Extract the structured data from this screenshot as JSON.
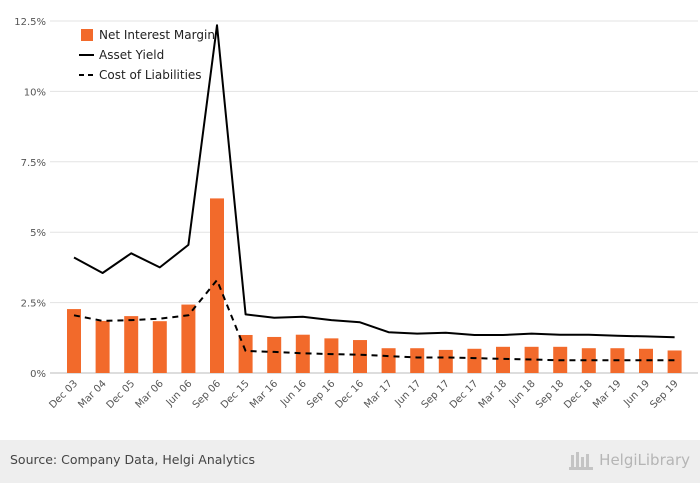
{
  "chart_data": {
    "type": "bar",
    "categories": [
      "Dec 03",
      "Mar 04",
      "Dec 05",
      "Mar 06",
      "Jun 06",
      "Sep 06",
      "Dec 15",
      "Mar 16",
      "Jun 16",
      "Sep 16",
      "Dec 16",
      "Mar 17",
      "Jun 17",
      "Sep 17",
      "Dec 17",
      "Mar 18",
      "Jun 18",
      "Sep 18",
      "Dec 18",
      "Mar 19",
      "Jun 19",
      "Sep 19"
    ],
    "series": [
      {
        "name": "Net Interest Margin",
        "kind": "bar",
        "color": "#f26a2b",
        "values": [
          2.27,
          1.85,
          2.02,
          1.84,
          2.43,
          6.2,
          1.35,
          1.28,
          1.36,
          1.23,
          1.17,
          0.88,
          0.88,
          0.82,
          0.86,
          0.93,
          0.93,
          0.93,
          0.88,
          0.88,
          0.86,
          0.8
        ]
      },
      {
        "name": "Asset Yield",
        "kind": "line",
        "style": "solid",
        "color": "#000000",
        "values": [
          4.1,
          3.55,
          4.25,
          3.75,
          4.55,
          12.35,
          2.08,
          1.96,
          2.0,
          1.88,
          1.8,
          1.45,
          1.4,
          1.43,
          1.35,
          1.35,
          1.4,
          1.36,
          1.36,
          1.32,
          1.3,
          1.27
        ]
      },
      {
        "name": "Cost of Liabilities",
        "kind": "line",
        "style": "dashed",
        "color": "#000000",
        "values": [
          2.05,
          1.85,
          1.88,
          1.93,
          2.05,
          3.3,
          0.78,
          0.75,
          0.7,
          0.67,
          0.65,
          0.6,
          0.55,
          0.55,
          0.53,
          0.5,
          0.48,
          0.45,
          0.45,
          0.45,
          0.45,
          0.45
        ]
      }
    ],
    "y_ticks": [
      "0%",
      "2.5%",
      "5%",
      "7.5%",
      "10%",
      "12.5%"
    ],
    "ylim": [
      0,
      12.5
    ],
    "grid": true,
    "legend_position": "top-left"
  },
  "footer": {
    "source": "Source: Company Data, Helgi Analytics",
    "brand": "HelgiLibrary",
    "logo": "helgi-logo-icon"
  }
}
